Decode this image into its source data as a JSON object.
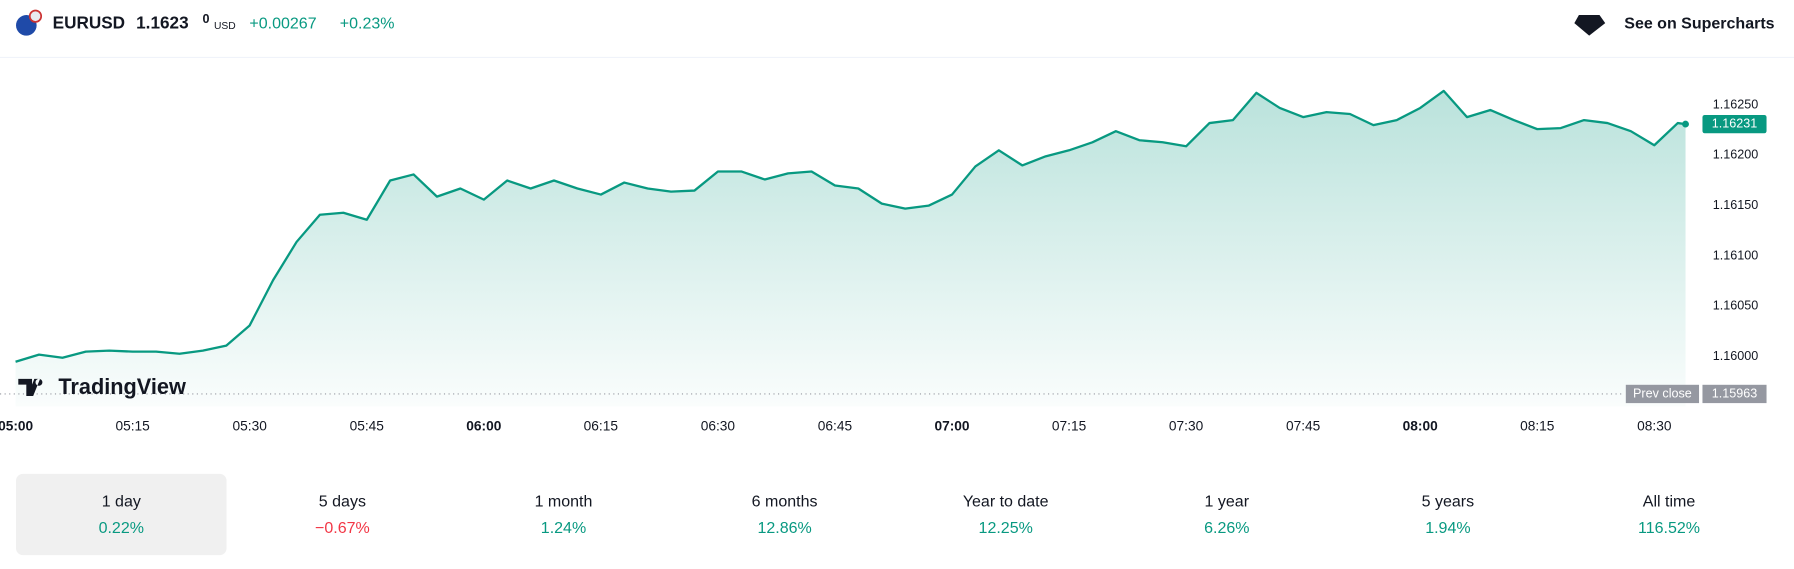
{
  "header": {
    "symbol": "EURUSD",
    "price": "1.1623",
    "price_fraction": "0",
    "currency": "USD",
    "change": "+0.00267",
    "change_percent": "+0.23%",
    "action": "See on Supercharts"
  },
  "chart_data": {
    "type": "line",
    "color": "#089981",
    "x": [
      "05:00",
      "05:03",
      "05:06",
      "05:09",
      "05:12",
      "05:15",
      "05:18",
      "05:21",
      "05:24",
      "05:27",
      "05:30",
      "05:33",
      "05:36",
      "05:39",
      "05:42",
      "05:45",
      "05:48",
      "05:51",
      "05:54",
      "05:57",
      "06:00",
      "06:03",
      "06:06",
      "06:09",
      "06:12",
      "06:15",
      "06:18",
      "06:21",
      "06:24",
      "06:27",
      "06:30",
      "06:33",
      "06:36",
      "06:39",
      "06:42",
      "06:45",
      "06:48",
      "06:51",
      "06:54",
      "06:57",
      "07:00",
      "07:03",
      "07:06",
      "07:09",
      "07:12",
      "07:15",
      "07:18",
      "07:21",
      "07:24",
      "07:27",
      "07:30",
      "07:33",
      "07:36",
      "07:39",
      "07:42",
      "07:45",
      "07:48",
      "07:51",
      "07:54",
      "07:57",
      "08:00",
      "08:03",
      "08:06",
      "08:09",
      "08:12",
      "08:15",
      "08:18",
      "08:21",
      "08:24",
      "08:27",
      "08:30",
      "08:33",
      "08:34"
    ],
    "values": [
      1.15995,
      1.16002,
      1.15999,
      1.16005,
      1.16006,
      1.16005,
      1.16005,
      1.16003,
      1.16006,
      1.16011,
      1.16031,
      1.16076,
      1.16114,
      1.16141,
      1.16143,
      1.16136,
      1.16175,
      1.16181,
      1.16159,
      1.16167,
      1.16156,
      1.16175,
      1.16167,
      1.16175,
      1.16167,
      1.16161,
      1.16173,
      1.16167,
      1.16164,
      1.16165,
      1.16184,
      1.16184,
      1.16176,
      1.16182,
      1.16184,
      1.1617,
      1.16167,
      1.16152,
      1.16147,
      1.1615,
      1.16161,
      1.16189,
      1.16205,
      1.1619,
      1.16199,
      1.16205,
      1.16213,
      1.16224,
      1.16215,
      1.16213,
      1.16209,
      1.16232,
      1.16235,
      1.16262,
      1.16247,
      1.16238,
      1.16243,
      1.16241,
      1.1623,
      1.16235,
      1.16247,
      1.16264,
      1.16238,
      1.16245,
      1.16235,
      1.16226,
      1.16227,
      1.16235,
      1.16232,
      1.16224,
      1.1621,
      1.16232,
      1.16231
    ],
    "xlim": [
      "04:58",
      "08:35"
    ],
    "xticks": [
      "05:00",
      "05:15",
      "05:30",
      "05:45",
      "06:00",
      "06:15",
      "06:30",
      "06:45",
      "07:00",
      "07:15",
      "07:30",
      "07:45",
      "08:00",
      "08:15",
      "08:30"
    ],
    "ylim": [
      1.15945,
      1.16295
    ],
    "yticks": [
      {
        "value": 1.16,
        "label": "1.16000"
      },
      {
        "value": 1.1605,
        "label": "1.16050"
      },
      {
        "value": 1.161,
        "label": "1.16100"
      },
      {
        "value": 1.1615,
        "label": "1.16150"
      },
      {
        "value": 1.162,
        "label": "1.16200"
      },
      {
        "value": 1.1625,
        "label": "1.16250"
      }
    ],
    "grid": false,
    "prev_close": 1.15963,
    "prev_close_label": "Prev close",
    "watermark": "TradingView"
  },
  "periods": [
    {
      "label": "1 day",
      "change": "0.22%",
      "selected": true
    },
    {
      "label": "5 days",
      "change": "−0.67%",
      "selected": false
    },
    {
      "label": "1 month",
      "change": "1.24%",
      "selected": false
    },
    {
      "label": "6 months",
      "change": "12.86%",
      "selected": false
    },
    {
      "label": "Year to date",
      "change": "12.25%",
      "selected": false
    },
    {
      "label": "1 year",
      "change": "6.26%",
      "selected": false
    },
    {
      "label": "5 years",
      "change": "1.94%",
      "selected": false
    },
    {
      "label": "All time",
      "change": "116.52%",
      "selected": false
    }
  ]
}
